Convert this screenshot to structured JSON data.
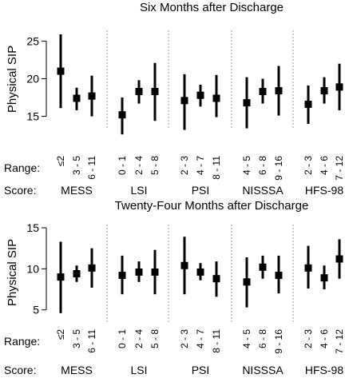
{
  "chart_data": [
    {
      "type": "interval",
      "title": "Six Months after Discharge",
      "ylabel": "Physical SIP",
      "ylim": [
        14,
        26
      ],
      "yticks": [
        15,
        20,
        25
      ],
      "row_labels": {
        "range": "Range:",
        "score": "Score:"
      },
      "groups": [
        {
          "score": "MESS",
          "items": [
            {
              "range": "≤2",
              "value": 21.0,
              "low": 16.1,
              "high": 25.9
            },
            {
              "range": "3 - 5",
              "value": 17.4,
              "low": 15.8,
              "high": 18.8
            },
            {
              "range": "6 - 11",
              "value": 17.7,
              "low": 15.0,
              "high": 20.4
            }
          ]
        },
        {
          "score": "LSI",
          "items": [
            {
              "range": "0 - 1",
              "value": 15.2,
              "low": 12.6,
              "high": 17.5
            },
            {
              "range": "2 - 4",
              "value": 18.3,
              "low": 16.7,
              "high": 19.8
            },
            {
              "range": "5 - 8",
              "value": 18.3,
              "low": 14.4,
              "high": 22.1
            }
          ]
        },
        {
          "score": "PSI",
          "items": [
            {
              "range": "2 - 3",
              "value": 17.1,
              "low": 13.2,
              "high": 20.6
            },
            {
              "range": "4 - 7",
              "value": 17.8,
              "low": 16.3,
              "high": 19.2
            },
            {
              "range": "8 - 11",
              "value": 17.4,
              "low": 14.9,
              "high": 20.5
            }
          ]
        },
        {
          "score": "NISSSA",
          "items": [
            {
              "range": "4 - 5",
              "value": 16.8,
              "low": 13.4,
              "high": 20.2
            },
            {
              "range": "6 - 8",
              "value": 18.3,
              "low": 16.7,
              "high": 20.0
            },
            {
              "range": "9 - 16",
              "value": 18.4,
              "low": 15.1,
              "high": 21.7
            }
          ]
        },
        {
          "score": "HFS-98",
          "items": [
            {
              "range": "2 - 3",
              "value": 16.6,
              "low": 14.0,
              "high": 19.1
            },
            {
              "range": "4 - 6",
              "value": 18.4,
              "low": 16.7,
              "high": 20.2
            },
            {
              "range": "7 - 12",
              "value": 18.9,
              "low": 15.8,
              "high": 22.0
            }
          ]
        }
      ]
    },
    {
      "type": "interval",
      "title": "Twenty-Four Months after Discharge",
      "ylabel": "Physical SIP",
      "ylim": [
        4,
        15
      ],
      "yticks": [
        5,
        10,
        15
      ],
      "row_labels": {
        "range": "Range:",
        "score": "Score:"
      },
      "groups": [
        {
          "score": "MESS",
          "items": [
            {
              "range": "≤2",
              "value": 9.0,
              "low": 4.6,
              "high": 13.3
            },
            {
              "range": "3 - 5",
              "value": 9.4,
              "low": 8.4,
              "high": 10.4
            },
            {
              "range": "6 - 11",
              "value": 10.1,
              "low": 7.7,
              "high": 12.5
            }
          ]
        },
        {
          "score": "LSI",
          "items": [
            {
              "range": "0 - 1",
              "value": 9.2,
              "low": 6.9,
              "high": 11.6
            },
            {
              "range": "2 - 4",
              "value": 9.6,
              "low": 8.4,
              "high": 10.9
            },
            {
              "range": "5 - 8",
              "value": 9.6,
              "low": 6.9,
              "high": 12.3
            }
          ]
        },
        {
          "score": "PSI",
          "items": [
            {
              "range": "2 - 3",
              "value": 10.4,
              "low": 6.9,
              "high": 13.9
            },
            {
              "range": "4 - 7",
              "value": 9.6,
              "low": 8.6,
              "high": 10.7
            },
            {
              "range": "8 - 11",
              "value": 8.8,
              "low": 6.6,
              "high": 10.9
            }
          ]
        },
        {
          "score": "NISSSA",
          "items": [
            {
              "range": "4 - 5",
              "value": 8.4,
              "low": 5.3,
              "high": 11.4
            },
            {
              "range": "6 - 8",
              "value": 10.2,
              "low": 8.8,
              "high": 11.6
            },
            {
              "range": "9 - 16",
              "value": 9.2,
              "low": 7.0,
              "high": 11.6
            }
          ]
        },
        {
          "score": "HFS-98",
          "items": [
            {
              "range": "2 - 3",
              "value": 10.1,
              "low": 7.6,
              "high": 12.8
            },
            {
              "range": "4 - 6",
              "value": 8.9,
              "low": 7.5,
              "high": 10.4
            },
            {
              "range": "7 - 12",
              "value": 11.2,
              "low": 8.8,
              "high": 13.6
            }
          ]
        }
      ]
    }
  ]
}
